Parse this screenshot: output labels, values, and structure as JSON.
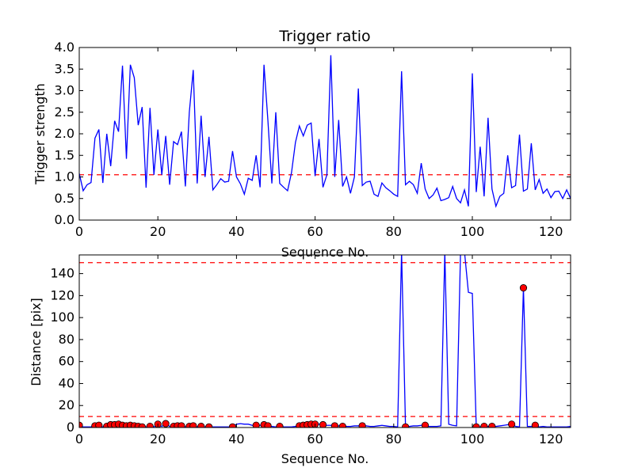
{
  "chart_data": [
    {
      "type": "line",
      "title": "Trigger ratio",
      "xlabel": "Sequence No.",
      "ylabel": "Trigger strength",
      "xlim": [
        0,
        125
      ],
      "ylim": [
        0,
        4.0
      ],
      "xticks": [
        "0",
        "20",
        "40",
        "60",
        "80",
        "100",
        "120"
      ],
      "yticks": [
        "0.0",
        "0.5",
        "1.0",
        "1.5",
        "2.0",
        "2.5",
        "3.0",
        "3.5",
        "4.0"
      ],
      "grid": false,
      "line_color": "#0000ff",
      "threshold": {
        "value": 1.05,
        "color": "#ff0000",
        "style": "dashed"
      },
      "series": [
        {
          "x": [
            0,
            1,
            2,
            3,
            4,
            5,
            6,
            7,
            8,
            9,
            10,
            11,
            12,
            13,
            14,
            15,
            16,
            17,
            18,
            19,
            20,
            21,
            22,
            23,
            24,
            25,
            26,
            27,
            28,
            29,
            30,
            31,
            32,
            33,
            34,
            35,
            36,
            37,
            38,
            39,
            40,
            41,
            42,
            43,
            44,
            45,
            46,
            47,
            48,
            49,
            50,
            51,
            52,
            53,
            54,
            55,
            56,
            57,
            58,
            59,
            60,
            61,
            62,
            63,
            64,
            65,
            66,
            67,
            68,
            69,
            70,
            71,
            72,
            73,
            74,
            75,
            76,
            77,
            78,
            79,
            80,
            81,
            82,
            83,
            84,
            85,
            86,
            87,
            88,
            89,
            90,
            91,
            92,
            93,
            94,
            95,
            96,
            97,
            98,
            99,
            100,
            101,
            102,
            103,
            104,
            105,
            106,
            107,
            108,
            109,
            110,
            111,
            112,
            113,
            114,
            115,
            116,
            117,
            118,
            119,
            120,
            121,
            122,
            123,
            124,
            125
          ],
          "y": [
            1.08,
            0.68,
            0.82,
            0.87,
            1.9,
            2.1,
            0.86,
            2.0,
            1.25,
            2.3,
            2.05,
            3.58,
            1.42,
            3.6,
            3.3,
            2.2,
            2.62,
            0.75,
            2.6,
            1.05,
            2.1,
            1.05,
            1.95,
            0.82,
            1.82,
            1.75,
            2.05,
            0.78,
            2.5,
            3.48,
            0.85,
            2.42,
            1.0,
            1.93,
            0.7,
            0.82,
            0.96,
            0.88,
            0.9,
            1.6,
            1.0,
            0.84,
            0.6,
            0.97,
            0.92,
            1.5,
            0.76,
            3.6,
            2.3,
            0.85,
            2.5,
            0.85,
            0.76,
            0.68,
            1.1,
            1.8,
            2.18,
            1.95,
            2.2,
            2.25,
            1.02,
            1.88,
            0.76,
            1.05,
            3.82,
            1.0,
            2.32,
            0.78,
            1.0,
            0.62,
            1.0,
            3.05,
            0.8,
            0.88,
            0.9,
            0.6,
            0.55,
            0.86,
            0.75,
            0.68,
            0.6,
            0.55,
            3.45,
            0.82,
            0.9,
            0.82,
            0.62,
            1.32,
            0.72,
            0.5,
            0.58,
            0.74,
            0.45,
            0.48,
            0.52,
            0.78,
            0.5,
            0.4,
            0.7,
            0.32,
            3.4,
            0.65,
            1.7,
            0.55,
            2.37,
            0.72,
            0.32,
            0.55,
            0.62,
            1.5,
            0.75,
            0.8,
            1.98,
            0.67,
            0.72,
            1.78,
            0.7,
            0.94,
            0.62,
            0.72,
            0.52,
            0.66,
            0.67,
            0.5,
            0.7,
            0.5
          ]
        }
      ]
    },
    {
      "type": "line",
      "title": "",
      "xlabel": "Sequence No.",
      "ylabel": "Distance [pix]",
      "xlim": [
        0,
        125
      ],
      "ylim": [
        0,
        157
      ],
      "xticks": [
        "0",
        "20",
        "40",
        "60",
        "80",
        "100",
        "120"
      ],
      "yticks": [
        "0",
        "20",
        "40",
        "60",
        "80",
        "100",
        "120",
        "140"
      ],
      "grid": false,
      "line_color": "#0000ff",
      "marker_color": "#ff0000",
      "thresholds": [
        {
          "value": 150,
          "color": "#ff0000",
          "style": "dashed"
        },
        {
          "value": 10,
          "color": "#ff0000",
          "style": "dashed"
        }
      ],
      "series": [
        {
          "x": [
            0,
            1,
            2,
            3,
            4,
            5,
            6,
            7,
            8,
            9,
            10,
            11,
            12,
            13,
            14,
            15,
            16,
            17,
            18,
            19,
            20,
            21,
            22,
            23,
            24,
            25,
            26,
            27,
            28,
            29,
            30,
            31,
            32,
            33,
            34,
            35,
            36,
            37,
            38,
            39,
            40,
            41,
            42,
            43,
            44,
            45,
            46,
            47,
            48,
            49,
            50,
            51,
            52,
            53,
            54,
            55,
            56,
            57,
            58,
            59,
            60,
            61,
            62,
            63,
            64,
            65,
            66,
            67,
            68,
            69,
            70,
            71,
            72,
            73,
            74,
            75,
            76,
            77,
            78,
            79,
            80,
            81,
            82,
            83,
            84,
            85,
            86,
            87,
            88,
            89,
            90,
            91,
            92,
            93,
            94,
            95,
            96,
            97,
            98,
            99,
            100,
            101,
            102,
            103,
            104,
            105,
            106,
            107,
            108,
            109,
            110,
            111,
            112,
            113,
            114,
            115,
            116,
            117,
            118,
            119,
            120,
            121,
            122,
            123,
            124,
            125
          ],
          "y": [
            2,
            0.5,
            0.5,
            0.5,
            1.5,
            2,
            0.5,
            1,
            2.5,
            2.5,
            3,
            2,
            1.5,
            2,
            1.5,
            1,
            0.5,
            0.5,
            1,
            0.5,
            3,
            1,
            3.5,
            1,
            1,
            1.5,
            1.5,
            0.5,
            1,
            1.5,
            0.5,
            1,
            0.5,
            0.5,
            0.5,
            0.5,
            0.5,
            0.5,
            0.5,
            0.5,
            3,
            3.5,
            3,
            3,
            2,
            1.5,
            2,
            2.5,
            1.5,
            1,
            0.5,
            1,
            0.5,
            0.5,
            0.5,
            1,
            1.5,
            2,
            2.5,
            3,
            3,
            3,
            2.5,
            2,
            2,
            1.5,
            1.5,
            1,
            1,
            1,
            1.5,
            1.5,
            2,
            1.5,
            1,
            1,
            1.5,
            2,
            1.5,
            1,
            1,
            0.5,
            160,
            0.5,
            1,
            1.5,
            1.5,
            2,
            2,
            1,
            1,
            1,
            1.5,
            160,
            3,
            2,
            1.5,
            160,
            160,
            123,
            122,
            0.5,
            0.5,
            0.5,
            1,
            1,
            1,
            1.5,
            2,
            2.5,
            3,
            1,
            0.5,
            127,
            1,
            1,
            2,
            0.5,
            1,
            0.5,
            0.5,
            0.5,
            0.5,
            0.5,
            0.5,
            1
          ]
        }
      ],
      "markers": {
        "x": [
          0,
          4,
          5,
          7,
          8,
          9,
          10,
          11,
          12,
          13,
          14,
          15,
          16,
          18,
          20,
          22,
          24,
          25,
          26,
          28,
          29,
          31,
          33,
          39,
          45,
          47,
          48,
          51,
          56,
          57,
          58,
          59,
          60,
          62,
          65,
          67,
          72,
          83,
          88,
          101,
          103,
          105,
          110,
          113,
          116
        ],
        "y": [
          2,
          1.5,
          2,
          1,
          2.5,
          2.5,
          3,
          2,
          1.5,
          2,
          1.5,
          1,
          0.5,
          1,
          3,
          3.5,
          1,
          1.5,
          1.5,
          1,
          1.5,
          1,
          0.5,
          0.5,
          2,
          2.5,
          1.5,
          1,
          1.5,
          2,
          2.5,
          3,
          3,
          2.5,
          1.5,
          1,
          1.5,
          0.5,
          2,
          0.5,
          1,
          1,
          3,
          127,
          2
        ]
      }
    }
  ]
}
